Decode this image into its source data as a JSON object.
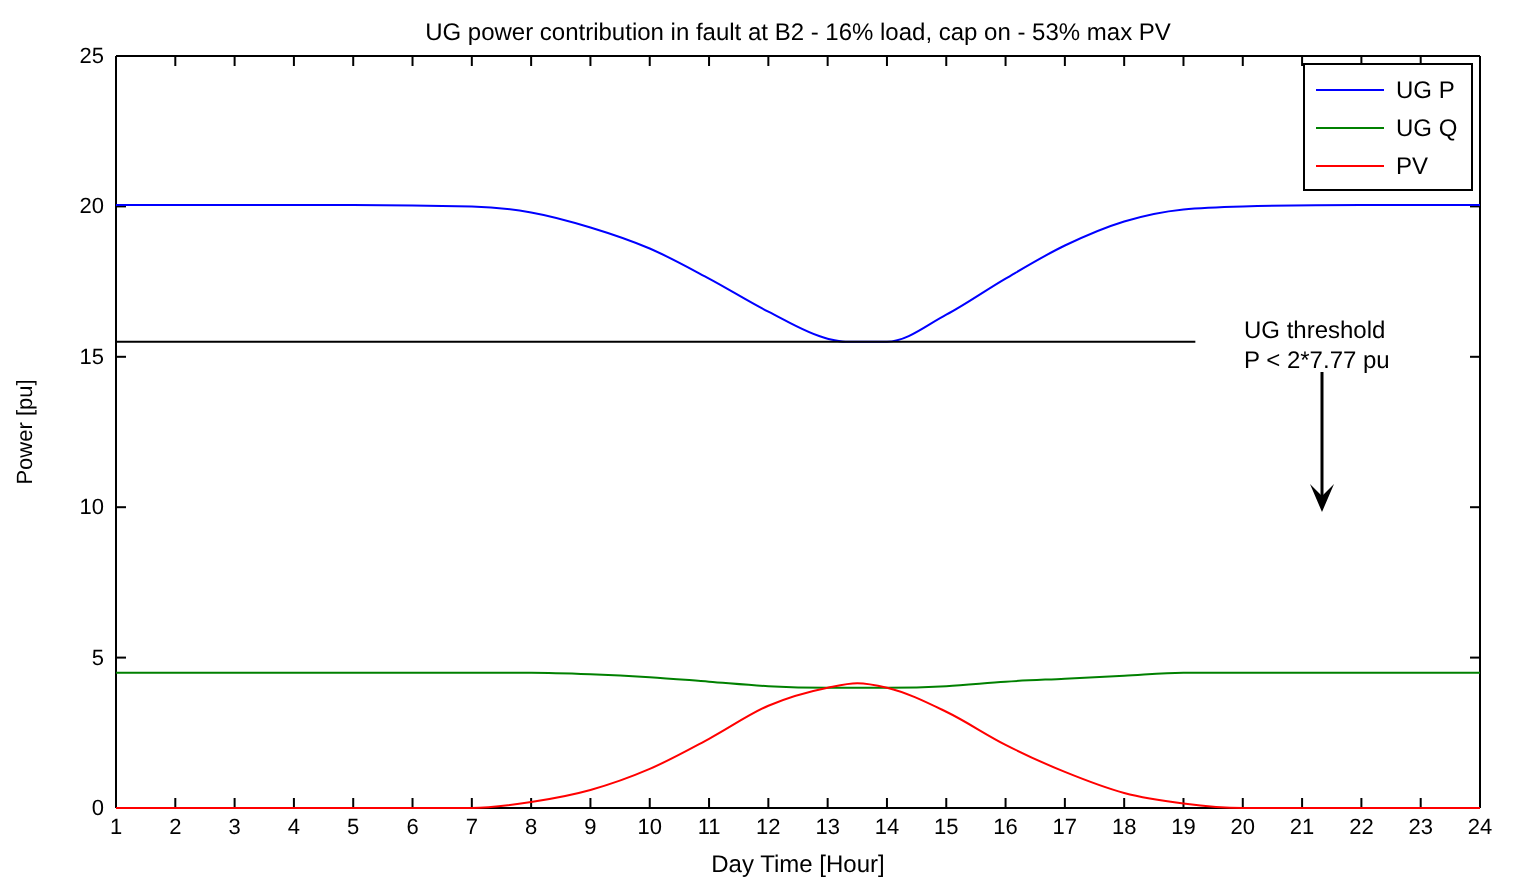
{
  "chart_data": {
    "type": "line",
    "title": "UG power contribution in fault at B2 - 16% load, cap on - 53% max PV",
    "xlabel": "Day Time [Hour]",
    "ylabel": "Power [pu]",
    "xlim": [
      1,
      24
    ],
    "xticks": [
      1,
      2,
      3,
      4,
      5,
      6,
      7,
      8,
      9,
      10,
      11,
      12,
      13,
      14,
      15,
      16,
      17,
      18,
      19,
      20,
      21,
      22,
      23,
      24
    ],
    "ylim": [
      0,
      25
    ],
    "yticks": [
      0,
      5,
      10,
      15,
      20,
      25
    ],
    "grid": false,
    "legend": "top right",
    "annotations": [
      "UG threshold",
      "P < 2*7.77 pu"
    ],
    "series": [
      {
        "name": "UG P",
        "color": "#0000ff",
        "x": [
          1,
          3,
          5,
          7,
          8,
          9,
          10,
          11,
          12,
          13,
          13.3,
          14,
          15,
          16,
          17,
          18,
          19,
          20,
          22,
          24
        ],
        "values": [
          20.05,
          20.05,
          20.05,
          20,
          19.8,
          19.3,
          18.6,
          17.6,
          16.5,
          15.6,
          15.5,
          15.5,
          16.4,
          17.6,
          18.7,
          19.5,
          19.9,
          20,
          20.05,
          20.05
        ]
      },
      {
        "name": "UG Q",
        "color": "#008000",
        "x": [
          1,
          4,
          7,
          8,
          9,
          10,
          11,
          12,
          13,
          14,
          15,
          16,
          17,
          18,
          19,
          21,
          24
        ],
        "values": [
          4.5,
          4.5,
          4.5,
          4.5,
          4.45,
          4.35,
          4.2,
          4.05,
          4,
          4,
          4.05,
          4.2,
          4.3,
          4.4,
          4.5,
          4.5,
          4.5
        ]
      },
      {
        "name": "PV",
        "color": "#ff0000",
        "x": [
          1,
          4,
          7,
          8,
          9,
          10,
          11,
          12,
          13,
          13.5,
          14,
          15,
          16,
          17,
          18,
          19,
          20,
          22,
          24
        ],
        "values": [
          0,
          0,
          0,
          0.2,
          0.6,
          1.3,
          2.3,
          3.4,
          4,
          4.15,
          4,
          3.2,
          2.1,
          1.2,
          0.5,
          0.15,
          0,
          0,
          0
        ]
      },
      {
        "color": "#000000",
        "x": [
          1,
          19.2
        ],
        "values": [
          15.5,
          15.5
        ]
      }
    ]
  }
}
